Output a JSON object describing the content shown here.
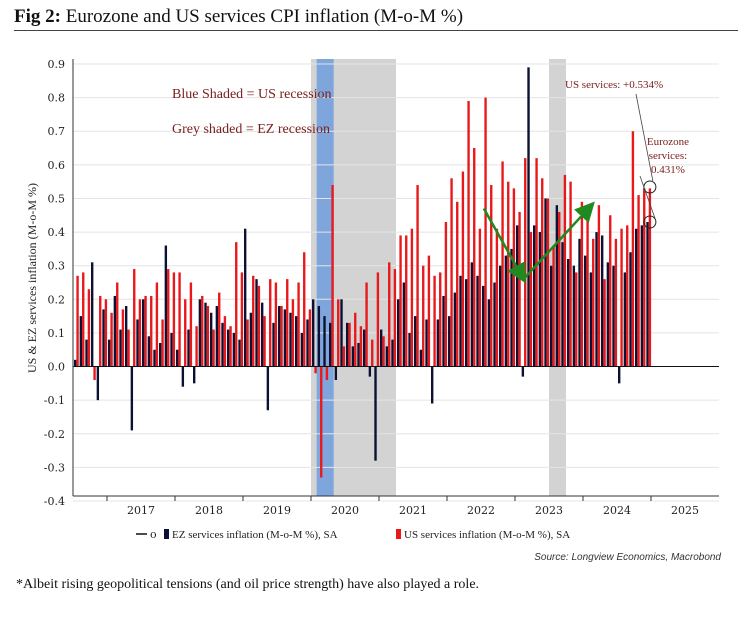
{
  "figure": {
    "title_bold": "Fig 2:",
    "title_rest": "Eurozone and US services CPI inflation (M-o-M %)",
    "source": "Source: Longview Economics, Macrobond",
    "footnote": "*Albeit rising geopolitical tensions (and oil price strength) have also played a role."
  },
  "chart_data": {
    "type": "bar",
    "title": "Eurozone and US services CPI inflation (M-o-M %)",
    "ylabel": "US & EZ services inflation (M-o-M %)",
    "xlabel": "",
    "ylim": [
      -0.4,
      0.9
    ],
    "yticks": [
      "0.9",
      "0.8",
      "0.7",
      "0.6",
      "0.5",
      "0.4",
      "0.3",
      "0.2",
      "0.1",
      "0.0",
      "-0.1",
      "-0.2",
      "-0.3",
      "-0.4"
    ],
    "year_labels": [
      "2017",
      "2018",
      "2019",
      "2020",
      "2021",
      "2022",
      "2023",
      "2024",
      "2025"
    ],
    "start": "2016-07",
    "legend": {
      "ez": "EZ services inflation (M-o-M %), SA",
      "us": "US services inflation (M-o-M %), SA",
      "zero_marker": "o"
    },
    "annotations": {
      "shade_us": "Blue Shaded = US recession",
      "shade_ez": "Grey shaded = EZ recession",
      "us_last": "US services: +0.534%",
      "ez_last_1": "Eurozone",
      "ez_last_2": "services:",
      "ez_last_3": "0.431%"
    },
    "recessions": {
      "us": [
        {
          "start": "2020-02",
          "end": "2020-04"
        }
      ],
      "ez": [
        {
          "start": "2020-01",
          "end": "2021-03"
        },
        {
          "start": "2023-07",
          "end": "2023-09"
        }
      ]
    },
    "trend_arrows": [
      {
        "from": [
          "2022-07",
          0.47
        ],
        "to": [
          "2023-02",
          0.26
        ]
      },
      {
        "from": [
          "2023-02",
          0.26
        ],
        "to": [
          "2024-02",
          0.48
        ]
      }
    ],
    "colors": {
      "ez": "#0b1133",
      "us": "#e8191b",
      "us_shade": "#7fa6dc",
      "ez_shade": "#d3d3d3",
      "arrow": "#1f8a1f",
      "annotation": "#7b2020"
    },
    "series": [
      {
        "name": "EZ services inflation (M-o-M %), SA",
        "values": [
          0.02,
          0.15,
          0.08,
          0.31,
          -0.1,
          0.17,
          0.08,
          0.21,
          0.11,
          0.18,
          -0.19,
          0.14,
          0.2,
          0.09,
          0.05,
          0.07,
          0.36,
          0.1,
          0.05,
          -0.06,
          0.11,
          -0.05,
          0.2,
          0.19,
          0.16,
          0.18,
          0.13,
          0.11,
          0.1,
          0.08,
          0.41,
          0.16,
          0.26,
          0.19,
          -0.13,
          0.13,
          0.18,
          0.17,
          0.16,
          0.15,
          0.1,
          0.14,
          0.2,
          0.18,
          0.15,
          0.13,
          -0.04,
          0.2,
          0.13,
          0.06,
          0.07,
          0.11,
          -0.03,
          -0.28,
          0.11,
          0.06,
          0.08,
          0.2,
          0.25,
          0.1,
          0.15,
          0.05,
          0.14,
          -0.11,
          0.14,
          0.21,
          0.15,
          0.22,
          0.27,
          0.26,
          0.31,
          0.27,
          0.24,
          0.2,
          0.25,
          0.3,
          0.33,
          0.35,
          0.42,
          -0.03,
          0.89,
          0.42,
          0.4,
          0.5,
          0.3,
          0.48,
          0.37,
          0.32,
          0.3,
          0.38,
          0.33,
          0.28,
          0.4,
          0.39,
          0.31,
          0.3,
          -0.05,
          0.28,
          0.34,
          0.41,
          0.42,
          0.43
        ]
      },
      {
        "name": "US services inflation (M-o-M %), SA",
        "values": [
          0.27,
          0.28,
          0.23,
          -0.04,
          0.21,
          0.2,
          0.16,
          0.25,
          0.17,
          0.11,
          0.29,
          0.2,
          0.21,
          0.21,
          0.25,
          0.14,
          0.29,
          0.28,
          0.28,
          0.2,
          0.25,
          0.12,
          0.21,
          0.18,
          0.11,
          0.22,
          0.15,
          0.12,
          0.37,
          0.28,
          0.14,
          0.27,
          0.24,
          0.15,
          0.26,
          0.25,
          0.18,
          0.26,
          0.2,
          0.25,
          0.34,
          0.17,
          -0.02,
          -0.33,
          -0.04,
          0.54,
          0.2,
          0.06,
          0.13,
          0.16,
          0.12,
          0.25,
          0.08,
          0.28,
          0.09,
          0.31,
          0.29,
          0.39,
          0.39,
          0.41,
          0.54,
          0.3,
          0.33,
          0.27,
          0.28,
          0.43,
          0.56,
          0.49,
          0.58,
          0.79,
          0.65,
          0.41,
          0.8,
          0.54,
          0.41,
          0.61,
          0.55,
          0.53,
          0.46,
          0.62,
          0.4,
          0.62,
          0.56,
          0.5,
          0.36,
          0.46,
          0.57,
          0.55,
          0.28,
          0.49,
          0.46,
          0.38,
          0.48,
          0.26,
          0.45,
          0.38,
          0.41,
          0.42,
          0.7,
          0.51,
          0.53,
          0.53
        ]
      }
    ]
  }
}
